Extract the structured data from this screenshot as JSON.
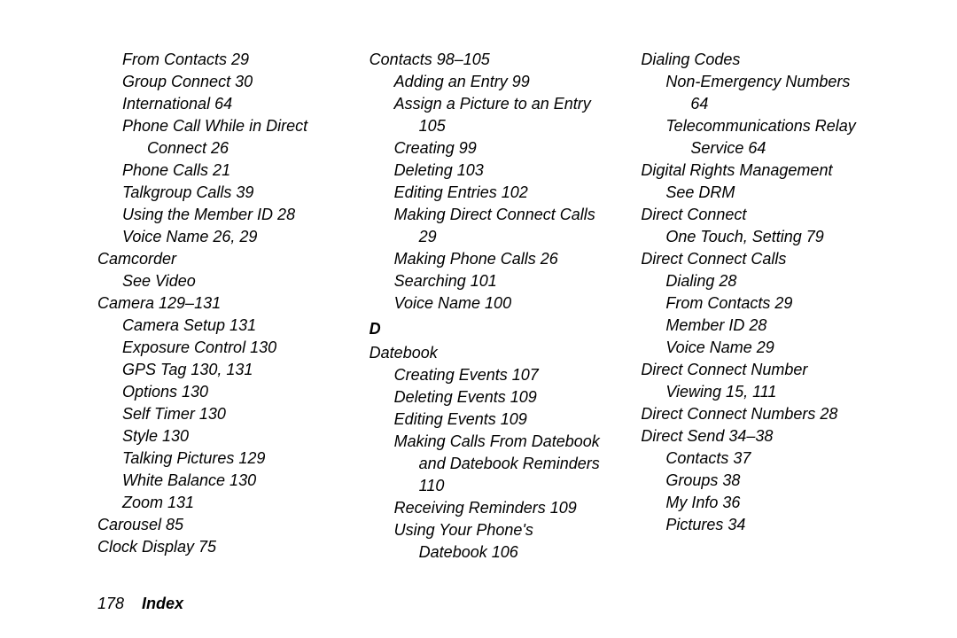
{
  "footer": {
    "page": "178",
    "title": "Index"
  },
  "columns": [
    [
      {
        "lvl": 2,
        "t": "From Contacts 29"
      },
      {
        "lvl": 2,
        "t": "Group Connect 30"
      },
      {
        "lvl": 2,
        "t": "International 64"
      },
      {
        "lvl": 2,
        "t": "Phone Call While in Direct"
      },
      {
        "lvl": 3,
        "t": "Connect 26"
      },
      {
        "lvl": 2,
        "t": "Phone Calls 21"
      },
      {
        "lvl": 2,
        "t": "Talkgroup Calls 39"
      },
      {
        "lvl": 2,
        "t": "Using the Member ID 28"
      },
      {
        "lvl": 2,
        "t": "Voice Name 26, 29"
      },
      {
        "lvl": 1,
        "t": "Camcorder"
      },
      {
        "lvl": 2,
        "t": "See Video"
      },
      {
        "lvl": 1,
        "t": "Camera 129–131"
      },
      {
        "lvl": 2,
        "t": "Camera Setup 131"
      },
      {
        "lvl": 2,
        "t": "Exposure Control 130"
      },
      {
        "lvl": 2,
        "t": "GPS Tag 130, 131"
      },
      {
        "lvl": 2,
        "t": "Options 130"
      },
      {
        "lvl": 2,
        "t": "Self Timer 130"
      },
      {
        "lvl": 2,
        "t": "Style 130"
      },
      {
        "lvl": 2,
        "t": "Talking Pictures 129"
      },
      {
        "lvl": 2,
        "t": "White Balance 130"
      },
      {
        "lvl": 2,
        "t": "Zoom 131"
      },
      {
        "lvl": 1,
        "t": "Carousel 85"
      },
      {
        "lvl": 1,
        "t": "Clock Display 75"
      }
    ],
    [
      {
        "lvl": 1,
        "t": "Contacts 98–105"
      },
      {
        "lvl": 2,
        "t": "Adding an Entry 99"
      },
      {
        "lvl": 2,
        "t": "Assign a Picture to an Entry"
      },
      {
        "lvl": 3,
        "t": "105"
      },
      {
        "lvl": 2,
        "t": "Creating 99"
      },
      {
        "lvl": 2,
        "t": "Deleting 103"
      },
      {
        "lvl": 2,
        "t": "Editing Entries 102"
      },
      {
        "lvl": 2,
        "t": "Making Direct Connect Calls"
      },
      {
        "lvl": 3,
        "t": "29"
      },
      {
        "lvl": 2,
        "t": "Making Phone Calls 26"
      },
      {
        "lvl": 2,
        "t": "Searching 101"
      },
      {
        "lvl": 2,
        "t": "Voice Name 100"
      },
      {
        "letter": "D"
      },
      {
        "lvl": 1,
        "t": "Datebook"
      },
      {
        "lvl": 2,
        "t": "Creating Events 107"
      },
      {
        "lvl": 2,
        "t": "Deleting Events 109"
      },
      {
        "lvl": 2,
        "t": "Editing Events 109"
      },
      {
        "lvl": 2,
        "t": "Making Calls From Datebook"
      },
      {
        "lvl": 3,
        "t": "and Datebook Reminders"
      },
      {
        "lvl": 3,
        "t": "110"
      },
      {
        "lvl": 2,
        "t": "Receiving Reminders 109"
      },
      {
        "lvl": 2,
        "t": "Using Your Phone's"
      },
      {
        "lvl": 3,
        "t": "Datebook 106"
      }
    ],
    [
      {
        "lvl": 1,
        "t": "Dialing Codes"
      },
      {
        "lvl": 2,
        "t": "Non-Emergency Numbers"
      },
      {
        "lvl": 3,
        "t": "64"
      },
      {
        "lvl": 2,
        "t": "Telecommunications Relay"
      },
      {
        "lvl": 3,
        "t": "Service 64"
      },
      {
        "lvl": 1,
        "t": "Digital Rights Management"
      },
      {
        "lvl": 2,
        "t": "See DRM"
      },
      {
        "lvl": 1,
        "t": "Direct Connect"
      },
      {
        "lvl": 2,
        "t": "One Touch, Setting 79"
      },
      {
        "lvl": 1,
        "t": "Direct Connect Calls"
      },
      {
        "lvl": 2,
        "t": "Dialing 28"
      },
      {
        "lvl": 2,
        "t": "From Contacts 29"
      },
      {
        "lvl": 2,
        "t": "Member ID 28"
      },
      {
        "lvl": 2,
        "t": "Voice Name 29"
      },
      {
        "lvl": 1,
        "t": "Direct Connect Number"
      },
      {
        "lvl": 2,
        "t": "Viewing 15, 111"
      },
      {
        "lvl": 1,
        "t": "Direct Connect Numbers 28"
      },
      {
        "lvl": 1,
        "t": "Direct Send 34–38"
      },
      {
        "lvl": 2,
        "t": "Contacts 37"
      },
      {
        "lvl": 2,
        "t": "Groups 38"
      },
      {
        "lvl": 2,
        "t": "My Info 36"
      },
      {
        "lvl": 2,
        "t": "Pictures 34"
      }
    ]
  ]
}
